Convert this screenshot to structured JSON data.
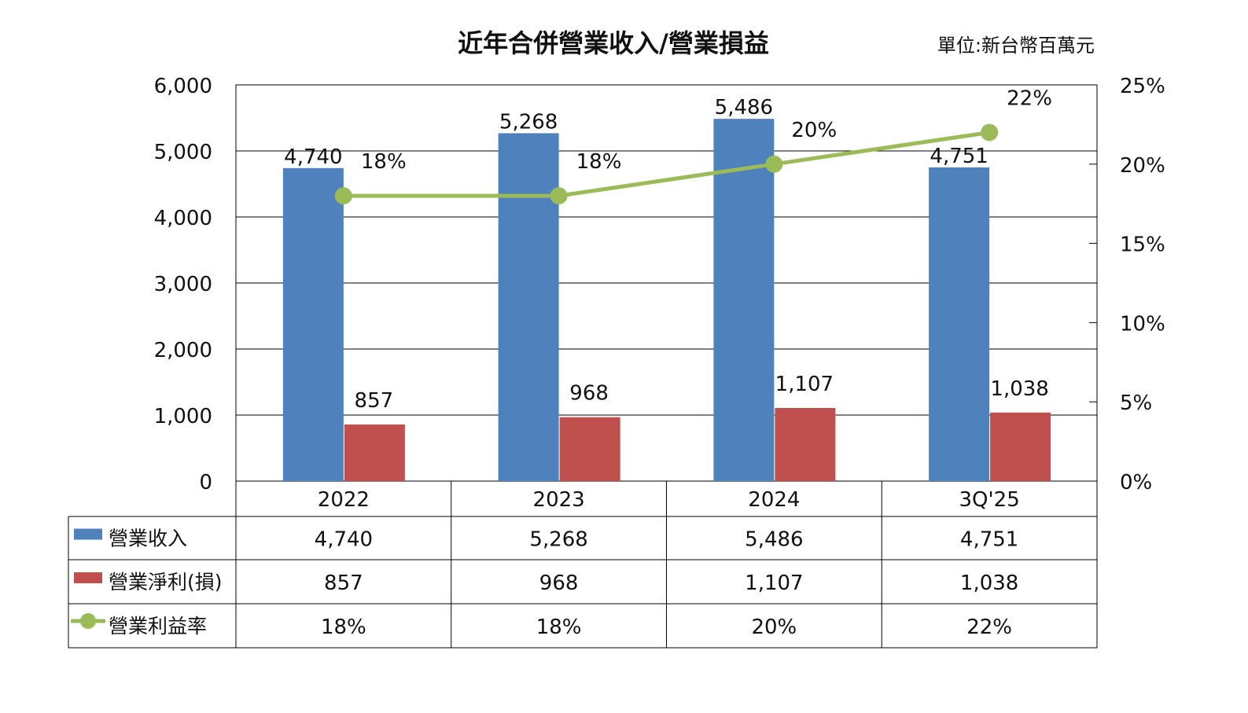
{
  "chart_data": {
    "type": "bar",
    "title": "近年合併營業收入/營業損益",
    "unit_label": "單位:新台幣百萬元",
    "categories": [
      "2022",
      "2023",
      "2024",
      "3Q'25"
    ],
    "series": [
      {
        "name": "營業收入",
        "type": "bar",
        "axis": "left",
        "color": "#4F81BD",
        "values": [
          4740,
          5268,
          5486,
          4751
        ],
        "labels": [
          "4,740",
          "5,268",
          "5,486",
          "4,751"
        ]
      },
      {
        "name": "營業淨利(損)",
        "type": "bar",
        "axis": "left",
        "color": "#C0504D",
        "values": [
          857,
          968,
          1107,
          1038
        ],
        "labels": [
          "857",
          "968",
          "1,107",
          "1,038"
        ]
      },
      {
        "name": "營業利益率",
        "type": "line",
        "axis": "right",
        "color": "#9BBB59",
        "values": [
          18,
          18,
          20,
          22
        ],
        "labels": [
          "18%",
          "18%",
          "20%",
          "22%"
        ]
      }
    ],
    "left_axis": {
      "range": [
        0,
        6000
      ],
      "ticks": [
        "0",
        "1,000",
        "2,000",
        "3,000",
        "4,000",
        "5,000",
        "6,000"
      ]
    },
    "right_axis": {
      "range": [
        0,
        25
      ],
      "ticks": [
        "0%",
        "5%",
        "10%",
        "15%",
        "20%",
        "25%"
      ]
    },
    "grid": true,
    "legend": "data-table"
  }
}
